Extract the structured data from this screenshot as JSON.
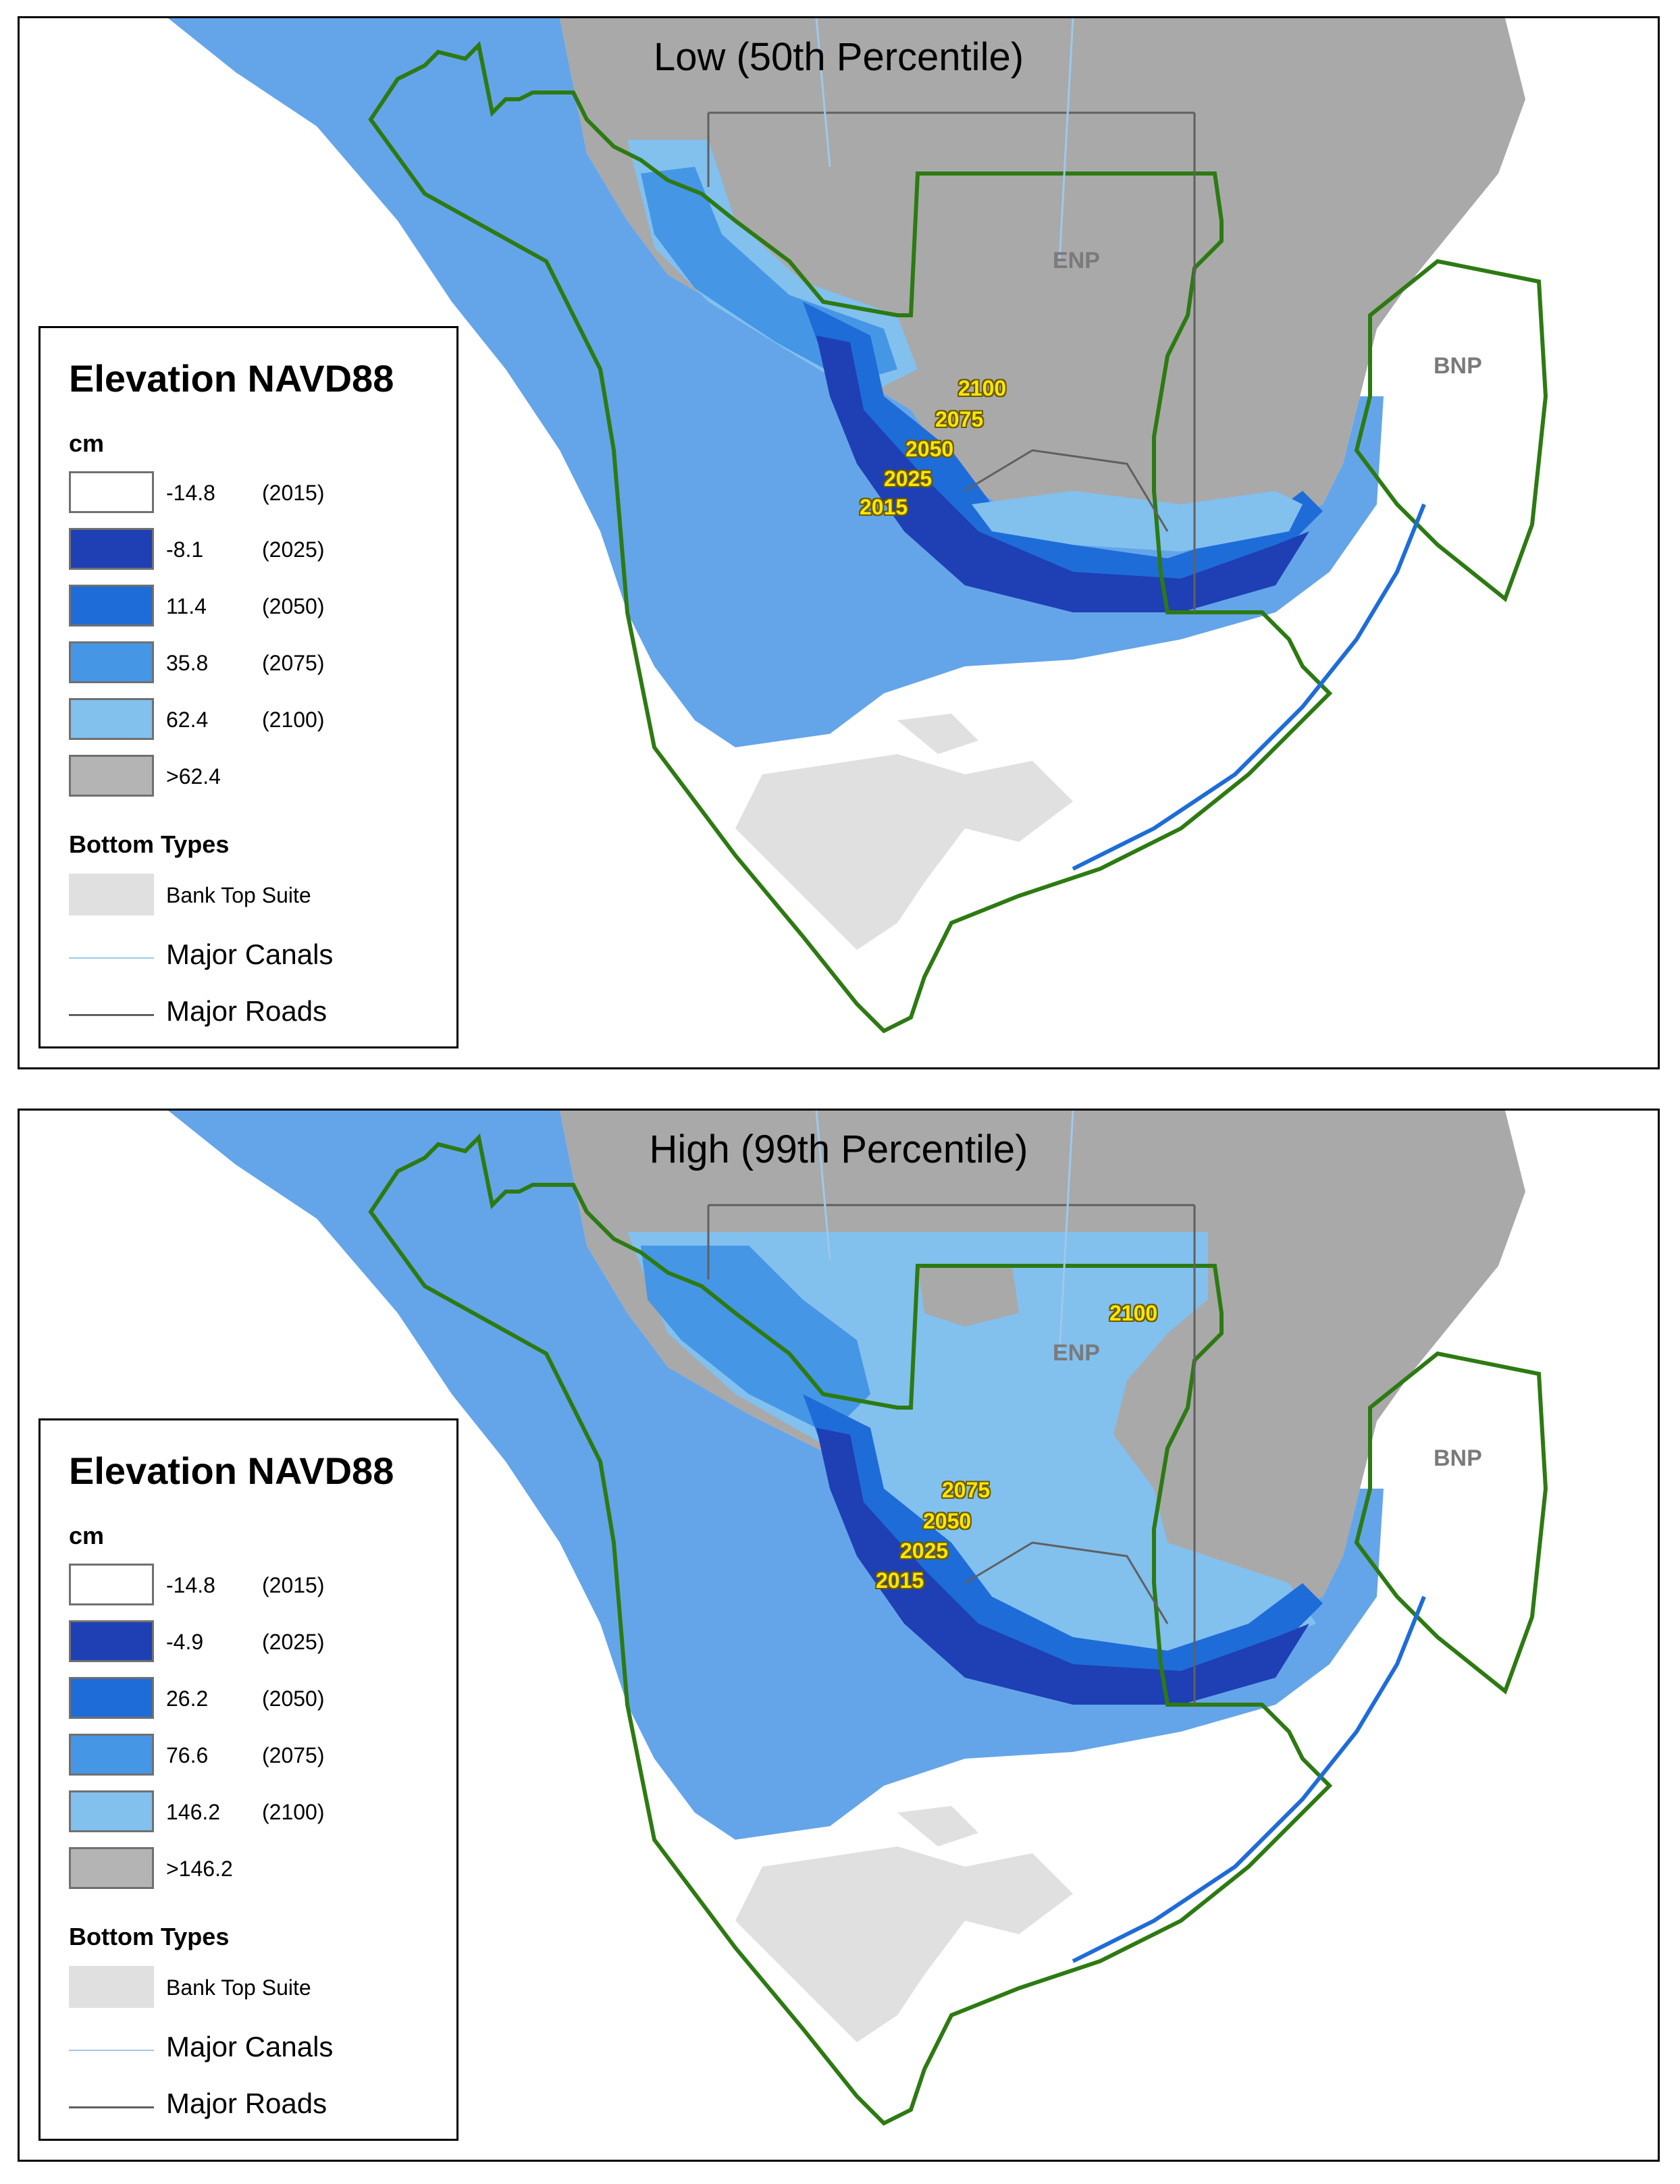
{
  "colors": {
    "c2015": "#ffffff",
    "c2025": "#1f3fb4",
    "c2050": "#1e6cd8",
    "c2075": "#4696e6",
    "c2100": "#82c0ee",
    "above": "#b4b4b4",
    "land": "#a9a9a9",
    "bank": "#e0e0e0",
    "boundary": "#2d7a12",
    "canal": "#9ec8ea",
    "road": "#606060",
    "label_yellow": "#ffe600"
  },
  "panels": [
    {
      "title": "Low (50th Percentile)",
      "map_labels": {
        "enp": "ENP",
        "bnp": "BNP"
      },
      "contour_labels": [
        "2100",
        "2075",
        "2050",
        "2025",
        "2015"
      ],
      "legend": {
        "title": "Elevation NAVD88",
        "unit": "cm",
        "items": [
          {
            "value": "-14.8",
            "year": "(2015)",
            "color_key": "c2015"
          },
          {
            "value": "-8.1",
            "year": "(2025)",
            "color_key": "c2025"
          },
          {
            "value": "11.4",
            "year": "(2050)",
            "color_key": "c2050"
          },
          {
            "value": "35.8",
            "year": "(2075)",
            "color_key": "c2075"
          },
          {
            "value": "62.4",
            "year": "(2100)",
            "color_key": "c2100"
          },
          {
            "value": ">62.4",
            "year": "",
            "color_key": "above"
          }
        ],
        "bottom_types_title": "Bottom Types",
        "bank_label": "Bank Top Suite",
        "canals_label": "Major Canals",
        "roads_label": "Major Roads"
      }
    },
    {
      "title": "High (99th Percentile)",
      "map_labels": {
        "enp": "ENP",
        "bnp": "BNP"
      },
      "contour_labels": [
        "2100",
        "2075",
        "2050",
        "2025",
        "2015"
      ],
      "legend": {
        "title": "Elevation NAVD88",
        "unit": "cm",
        "items": [
          {
            "value": "-14.8",
            "year": "(2015)",
            "color_key": "c2015"
          },
          {
            "value": "-4.9",
            "year": "(2025)",
            "color_key": "c2025"
          },
          {
            "value": "26.2",
            "year": "(2050)",
            "color_key": "c2050"
          },
          {
            "value": "76.6",
            "year": "(2075)",
            "color_key": "c2075"
          },
          {
            "value": "146.2",
            "year": "(2100)",
            "color_key": "c2100"
          },
          {
            "value": ">146.2",
            "year": "",
            "color_key": "above"
          }
        ],
        "bottom_types_title": "Bottom Types",
        "bank_label": "Bank Top Suite",
        "canals_label": "Major Canals",
        "roads_label": "Major Roads"
      }
    }
  ]
}
